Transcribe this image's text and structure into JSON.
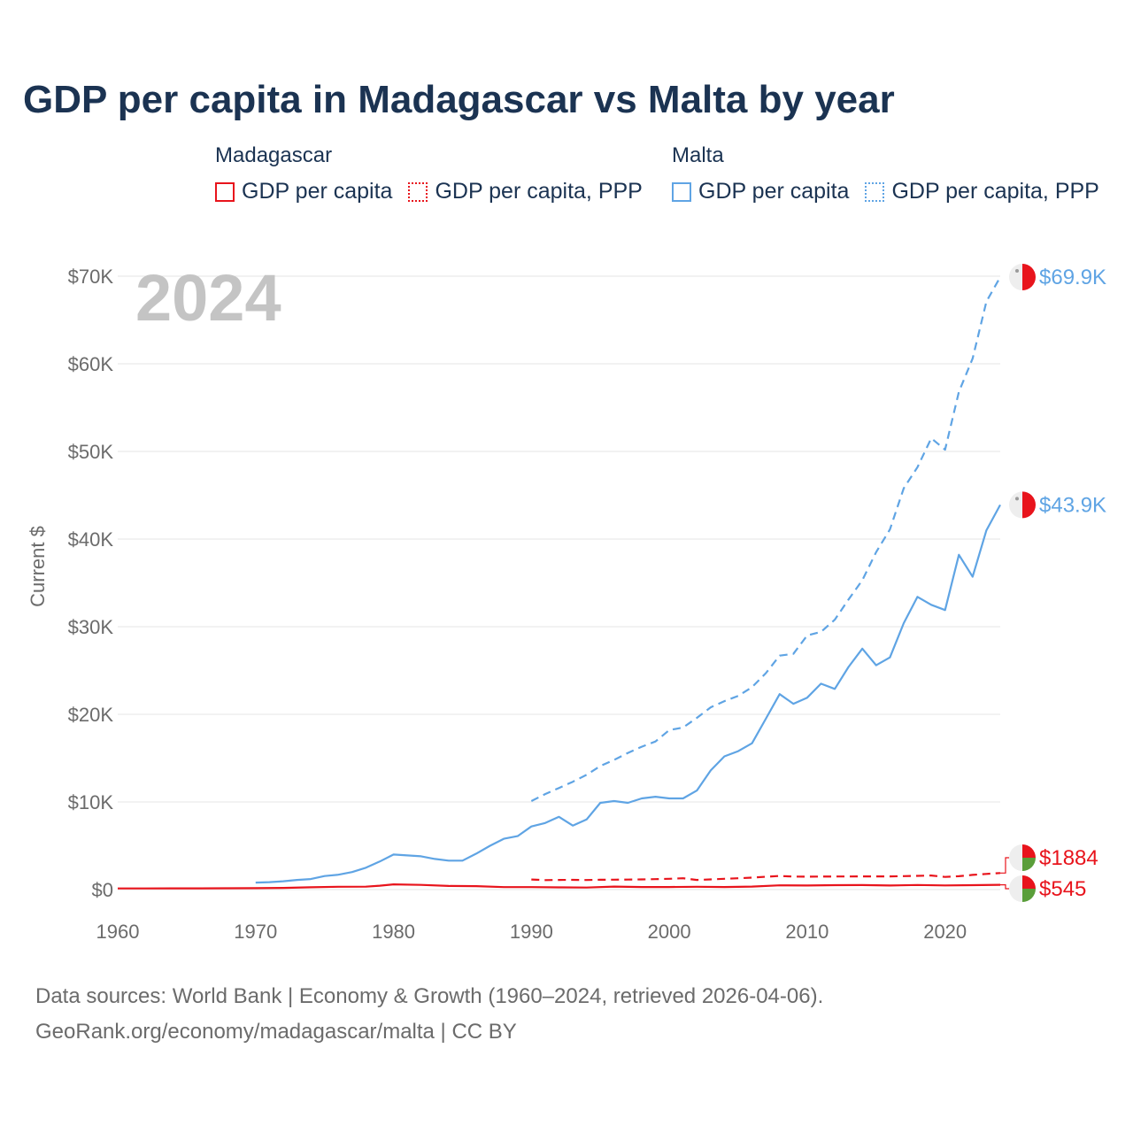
{
  "title": "GDP per capita in Madagascar vs Malta by year",
  "legend": {
    "madagascar": {
      "country": "Madagascar",
      "items": [
        "GDP per capita",
        "GDP per capita, PPP"
      ]
    },
    "malta": {
      "country": "Malta",
      "items": [
        "GDP per capita",
        "GDP per capita, PPP"
      ]
    }
  },
  "year_watermark": "2024",
  "footer": {
    "line1": "Data sources: World Bank | Economy & Growth (1960–2024, retrieved 2026-04-06).",
    "line2": "GeoRank.org/economy/madagascar/malta | CC BY"
  },
  "colors": {
    "madagascar": "#e8141c",
    "malta": "#5fa4e4",
    "grid": "#e6e6e6",
    "axis_text": "#6b6b6b"
  },
  "chart_data": {
    "type": "line",
    "title": "GDP per capita in Madagascar vs Malta by year",
    "xlabel": "",
    "ylabel": "Current $",
    "xlim": [
      1960,
      2024
    ],
    "ylim": [
      0,
      70000
    ],
    "x_ticks": [
      1960,
      1970,
      1980,
      1990,
      2000,
      2010,
      2020
    ],
    "x_tick_labels": [
      "1960",
      "1970",
      "1980",
      "1990",
      "2000",
      "2010",
      "2020"
    ],
    "y_ticks": [
      0,
      10000,
      20000,
      30000,
      40000,
      50000,
      60000,
      70000
    ],
    "y_tick_labels": [
      "$0",
      "$10K",
      "$20K",
      "$30K",
      "$40K",
      "$50K",
      "$60K",
      "$70K"
    ],
    "grid": true,
    "series": [
      {
        "name": "Malta GDP per capita, PPP",
        "country": "Malta",
        "style": "dashed",
        "end_label": "$69.9K",
        "x": [
          1990,
          1991,
          1992,
          1993,
          1994,
          1995,
          1996,
          1997,
          1998,
          1999,
          2000,
          2001,
          2002,
          2003,
          2004,
          2005,
          2006,
          2007,
          2008,
          2009,
          2010,
          2011,
          2012,
          2013,
          2014,
          2015,
          2016,
          2017,
          2018,
          2019,
          2020,
          2021,
          2022,
          2023,
          2024
        ],
        "values": [
          10100,
          10900,
          11600,
          12300,
          13100,
          14100,
          14800,
          15600,
          16300,
          16900,
          18200,
          18500,
          19600,
          20800,
          21500,
          22100,
          23100,
          24700,
          26700,
          26900,
          29000,
          29400,
          30800,
          33100,
          35300,
          38500,
          41100,
          45800,
          48200,
          51500,
          50200,
          56800,
          60600,
          67100,
          69900
        ]
      },
      {
        "name": "Malta GDP per capita",
        "country": "Malta",
        "style": "solid",
        "end_label": "$43.9K",
        "x": [
          1970,
          1971,
          1972,
          1973,
          1974,
          1975,
          1976,
          1977,
          1978,
          1979,
          1980,
          1981,
          1982,
          1983,
          1984,
          1985,
          1986,
          1987,
          1988,
          1989,
          1990,
          1991,
          1992,
          1993,
          1994,
          1995,
          1996,
          1997,
          1998,
          1999,
          2000,
          2001,
          2002,
          2003,
          2004,
          2005,
          2006,
          2007,
          2008,
          2009,
          2010,
          2011,
          2012,
          2013,
          2014,
          2015,
          2016,
          2017,
          2018,
          2019,
          2020,
          2021,
          2022,
          2023,
          2024
        ],
        "values": [
          800,
          850,
          950,
          1100,
          1200,
          1550,
          1700,
          2000,
          2500,
          3200,
          4000,
          3900,
          3800,
          3500,
          3300,
          3300,
          4100,
          5000,
          5800,
          6100,
          7200,
          7600,
          8300,
          7300,
          8000,
          9900,
          10100,
          9900,
          10400,
          10600,
          10400,
          10400,
          11300,
          13600,
          15200,
          15800,
          16700,
          19500,
          22300,
          21200,
          21900,
          23500,
          22900,
          25400,
          27500,
          25600,
          26500,
          30400,
          33400,
          32500,
          31900,
          38200,
          35700,
          41000,
          43900
        ]
      },
      {
        "name": "Madagascar GDP per capita, PPP",
        "country": "Madagascar",
        "style": "dashed",
        "end_label": "$1884",
        "x": [
          1990,
          1991,
          1992,
          1993,
          1994,
          1995,
          1996,
          1997,
          1998,
          1999,
          2000,
          2001,
          2002,
          2003,
          2004,
          2005,
          2006,
          2007,
          2008,
          2009,
          2010,
          2011,
          2012,
          2013,
          2014,
          2015,
          2016,
          2017,
          2018,
          2019,
          2020,
          2021,
          2022,
          2023,
          2024
        ],
        "values": [
          1150,
          1080,
          1100,
          1110,
          1090,
          1120,
          1130,
          1140,
          1160,
          1190,
          1230,
          1290,
          1100,
          1160,
          1230,
          1290,
          1360,
          1460,
          1560,
          1480,
          1470,
          1480,
          1490,
          1490,
          1500,
          1500,
          1510,
          1540,
          1570,
          1610,
          1440,
          1530,
          1680,
          1790,
          1884
        ]
      },
      {
        "name": "Madagascar GDP per capita",
        "country": "Madagascar",
        "style": "solid",
        "end_label": "$545",
        "x": [
          1960,
          1962,
          1964,
          1966,
          1968,
          1970,
          1972,
          1974,
          1976,
          1978,
          1979,
          1980,
          1982,
          1984,
          1986,
          1988,
          1990,
          1992,
          1994,
          1996,
          1998,
          2000,
          2002,
          2004,
          2006,
          2008,
          2010,
          2012,
          2014,
          2016,
          2018,
          2020,
          2022,
          2024
        ],
        "values": [
          130,
          135,
          140,
          145,
          150,
          160,
          190,
          260,
          320,
          330,
          440,
          600,
          540,
          410,
          390,
          280,
          280,
          250,
          230,
          340,
          290,
          290,
          320,
          290,
          340,
          480,
          460,
          500,
          520,
          460,
          530,
          470,
          500,
          545
        ]
      }
    ]
  }
}
